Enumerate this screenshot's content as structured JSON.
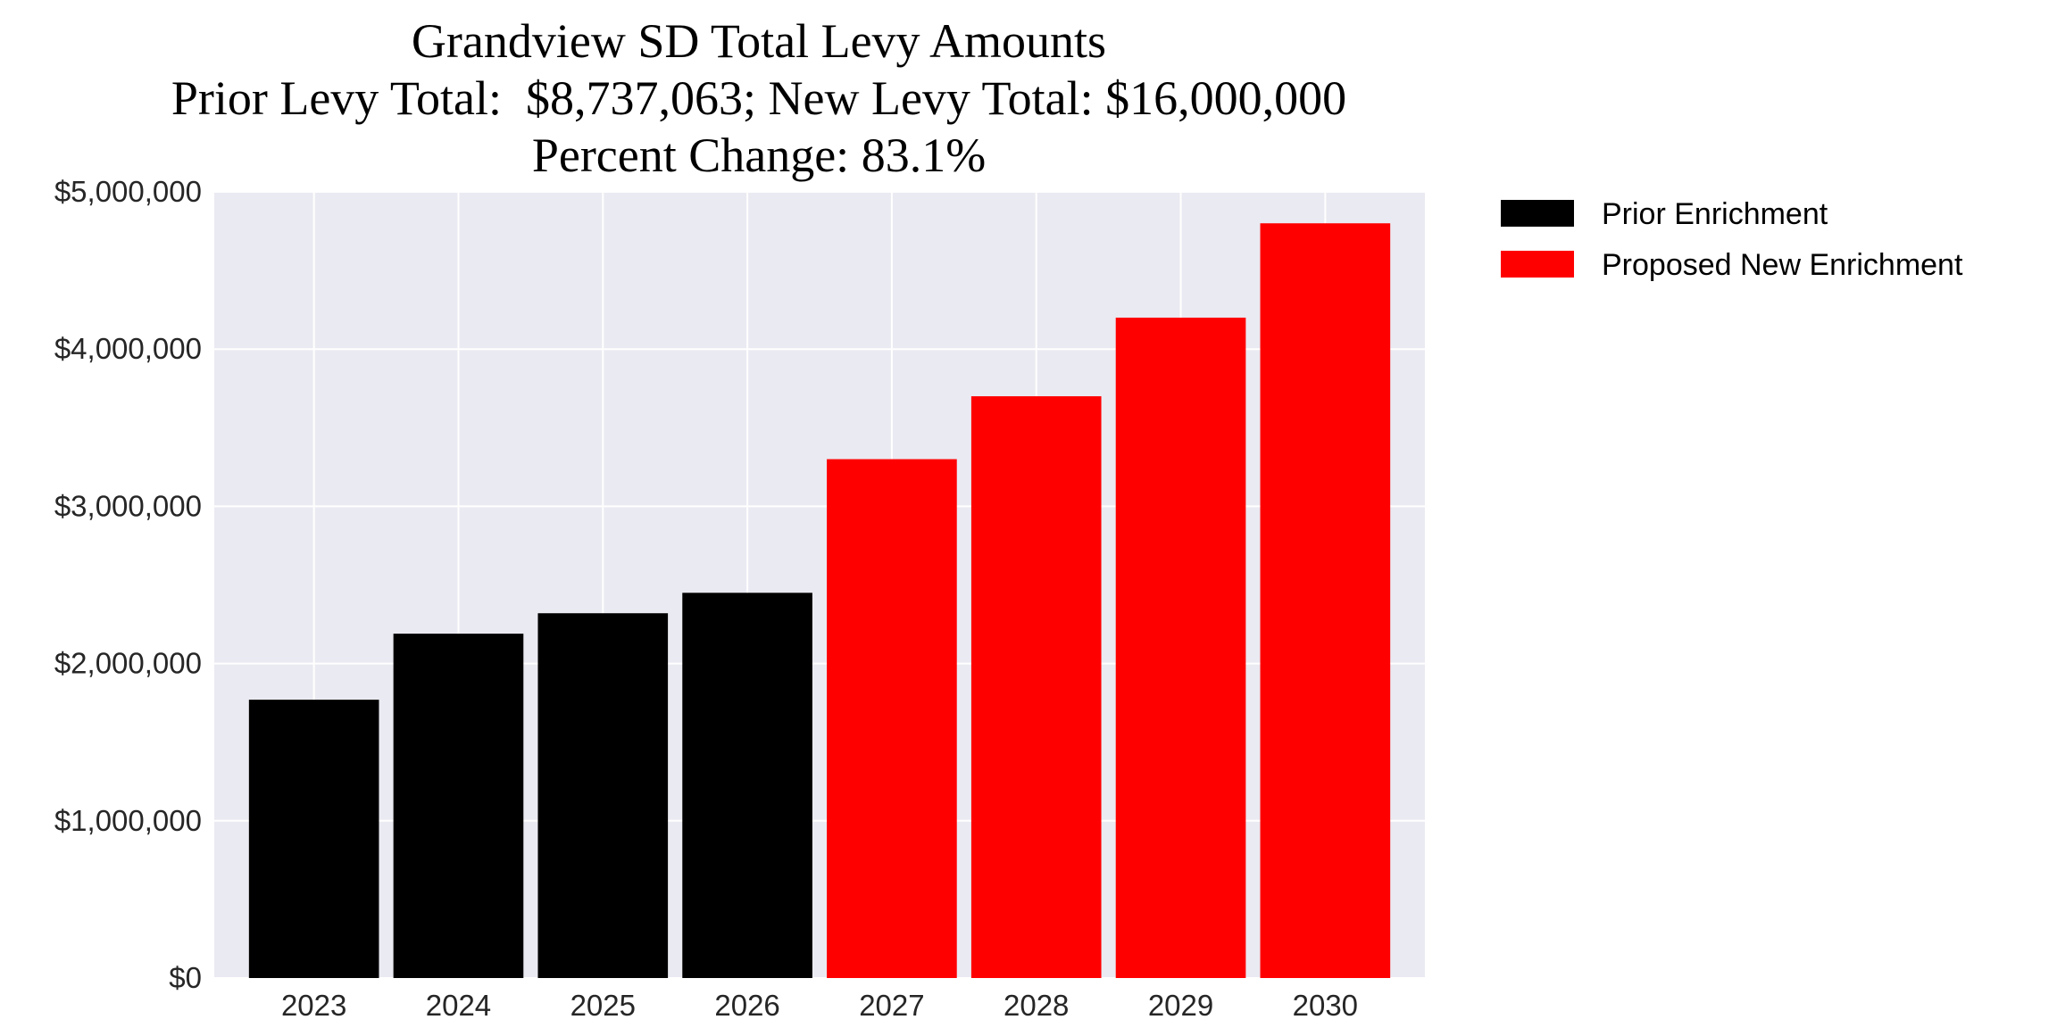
{
  "chart_data": {
    "type": "bar",
    "title": [
      "Grandview SD Total Levy Amounts",
      "Prior Levy Total:  $8,737,063; New Levy Total: $16,000,000",
      "Percent Change: 83.1%"
    ],
    "xlabel": "",
    "ylabel": "",
    "categories": [
      "2023",
      "2024",
      "2025",
      "2026",
      "2027",
      "2028",
      "2029",
      "2030"
    ],
    "series": [
      {
        "name": "Prior Enrichment",
        "color": "#000000",
        "values": [
          1770000,
          2190000,
          2320000,
          2450000,
          null,
          null,
          null,
          null
        ]
      },
      {
        "name": "Proposed New Enrichment",
        "color": "#ff0000",
        "values": [
          null,
          null,
          null,
          null,
          3300000,
          3700000,
          4200000,
          4800000
        ]
      }
    ],
    "ylim": [
      0,
      5000000
    ],
    "yticks": [
      0,
      1000000,
      2000000,
      3000000,
      4000000,
      5000000
    ],
    "ytick_labels": [
      "$0",
      "$1,000,000",
      "$2,000,000",
      "$3,000,000",
      "$4,000,000",
      "$5,000,000"
    ],
    "grid": true,
    "background": "#eaeaf2",
    "legend_position": "outside-right-top"
  }
}
